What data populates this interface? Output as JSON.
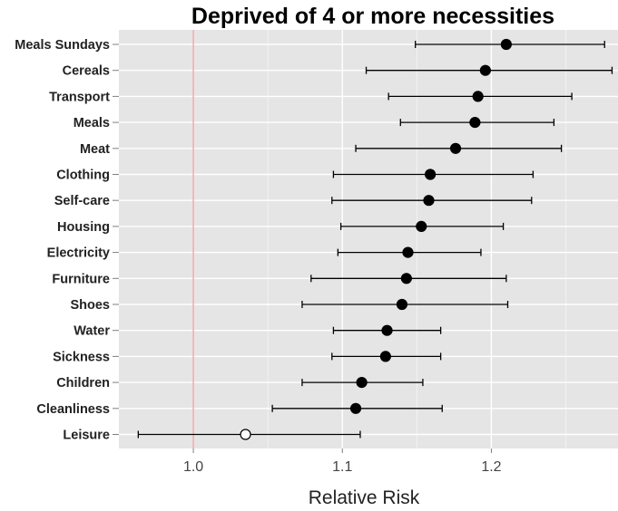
{
  "chart_data": {
    "type": "scatter",
    "subtype": "forest-plot",
    "title": "Deprived of 4 or more necessities",
    "xlabel": "Relative Risk",
    "ylabel": "",
    "xlim": [
      0.95,
      1.285
    ],
    "xticks": [
      1.0,
      1.1,
      1.2
    ],
    "xtick_labels": [
      "1.0",
      "1.1",
      "1.2"
    ],
    "reference_line": 1.0,
    "reference_line_color": "#f8a0a0",
    "panel_color": "#e5e5e5",
    "grid": true,
    "grid_color": "#ffffff",
    "marker_color": "#000000",
    "open_marker_fill": "#ffffff",
    "categories": [
      "Meals Sundays",
      "Cereals",
      "Transport",
      "Meals",
      "Meat",
      "Clothing",
      "Self-care",
      "Housing",
      "Electricity",
      "Furniture",
      "Shoes",
      "Water",
      "Sickness",
      "Children",
      "Cleanliness",
      "Leisure"
    ],
    "estimates": [
      1.21,
      1.196,
      1.191,
      1.189,
      1.176,
      1.159,
      1.158,
      1.153,
      1.144,
      1.143,
      1.14,
      1.13,
      1.129,
      1.113,
      1.109,
      1.035
    ],
    "lower": [
      1.149,
      1.116,
      1.131,
      1.139,
      1.109,
      1.094,
      1.093,
      1.099,
      1.097,
      1.079,
      1.073,
      1.094,
      1.093,
      1.073,
      1.053,
      0.963
    ],
    "upper": [
      1.276,
      1.281,
      1.254,
      1.242,
      1.247,
      1.228,
      1.227,
      1.208,
      1.193,
      1.21,
      1.211,
      1.166,
      1.166,
      1.154,
      1.167,
      1.112
    ],
    "open_marker": [
      false,
      false,
      false,
      false,
      false,
      false,
      false,
      false,
      false,
      false,
      false,
      false,
      false,
      false,
      false,
      true
    ]
  }
}
